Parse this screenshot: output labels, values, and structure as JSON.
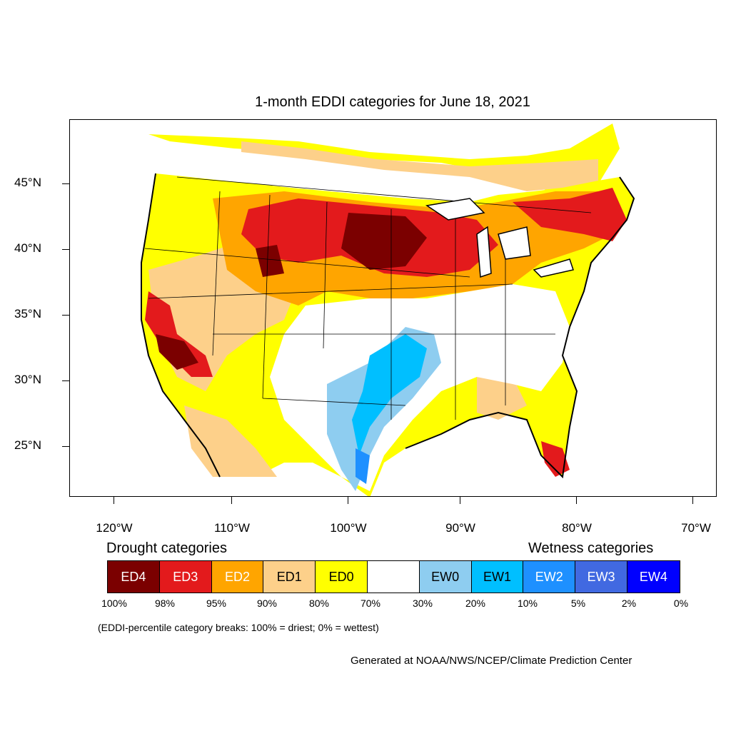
{
  "title": "1-month EDDI categories for June 18, 2021",
  "map": {
    "lat_labels": [
      "45°N",
      "40°N",
      "35°N",
      "30°N",
      "25°N"
    ],
    "lon_labels": [
      "120°W",
      "110°W",
      "100°W",
      "90°W",
      "80°W",
      "70°W"
    ]
  },
  "legend": {
    "drought_title": "Drought categories",
    "wetness_title": "Wetness categories",
    "categories": [
      {
        "label": "ED4",
        "color": "#7b0000",
        "text_color": "#ffffff"
      },
      {
        "label": "ED3",
        "color": "#e31a1c",
        "text_color": "#ffffff"
      },
      {
        "label": "ED2",
        "color": "#ffa500",
        "text_color": "#ffffff"
      },
      {
        "label": "ED1",
        "color": "#fdd08a",
        "text_color": "#000000"
      },
      {
        "label": "ED0",
        "color": "#ffff00",
        "text_color": "#000000"
      },
      {
        "label": "",
        "color": "#ffffff",
        "text_color": "#000000"
      },
      {
        "label": "EW0",
        "color": "#8ecdf0",
        "text_color": "#000000"
      },
      {
        "label": "EW1",
        "color": "#00bfff",
        "text_color": "#000000"
      },
      {
        "label": "EW2",
        "color": "#1e90ff",
        "text_color": "#ffffff"
      },
      {
        "label": "EW3",
        "color": "#4169e1",
        "text_color": "#ffffff"
      },
      {
        "label": "EW4",
        "color": "#0000ff",
        "text_color": "#ffffff"
      }
    ],
    "percentiles": [
      "100%",
      "98%",
      "95%",
      "90%",
      "80%",
      "70%",
      "30%",
      "20%",
      "10%",
      "5%",
      "2%",
      "0%"
    ]
  },
  "note": "(EDDI-percentile category breaks: 100% = driest; 0% = wettest)",
  "credit": "Generated at NOAA/NWS/NCEP/Climate Prediction Center"
}
